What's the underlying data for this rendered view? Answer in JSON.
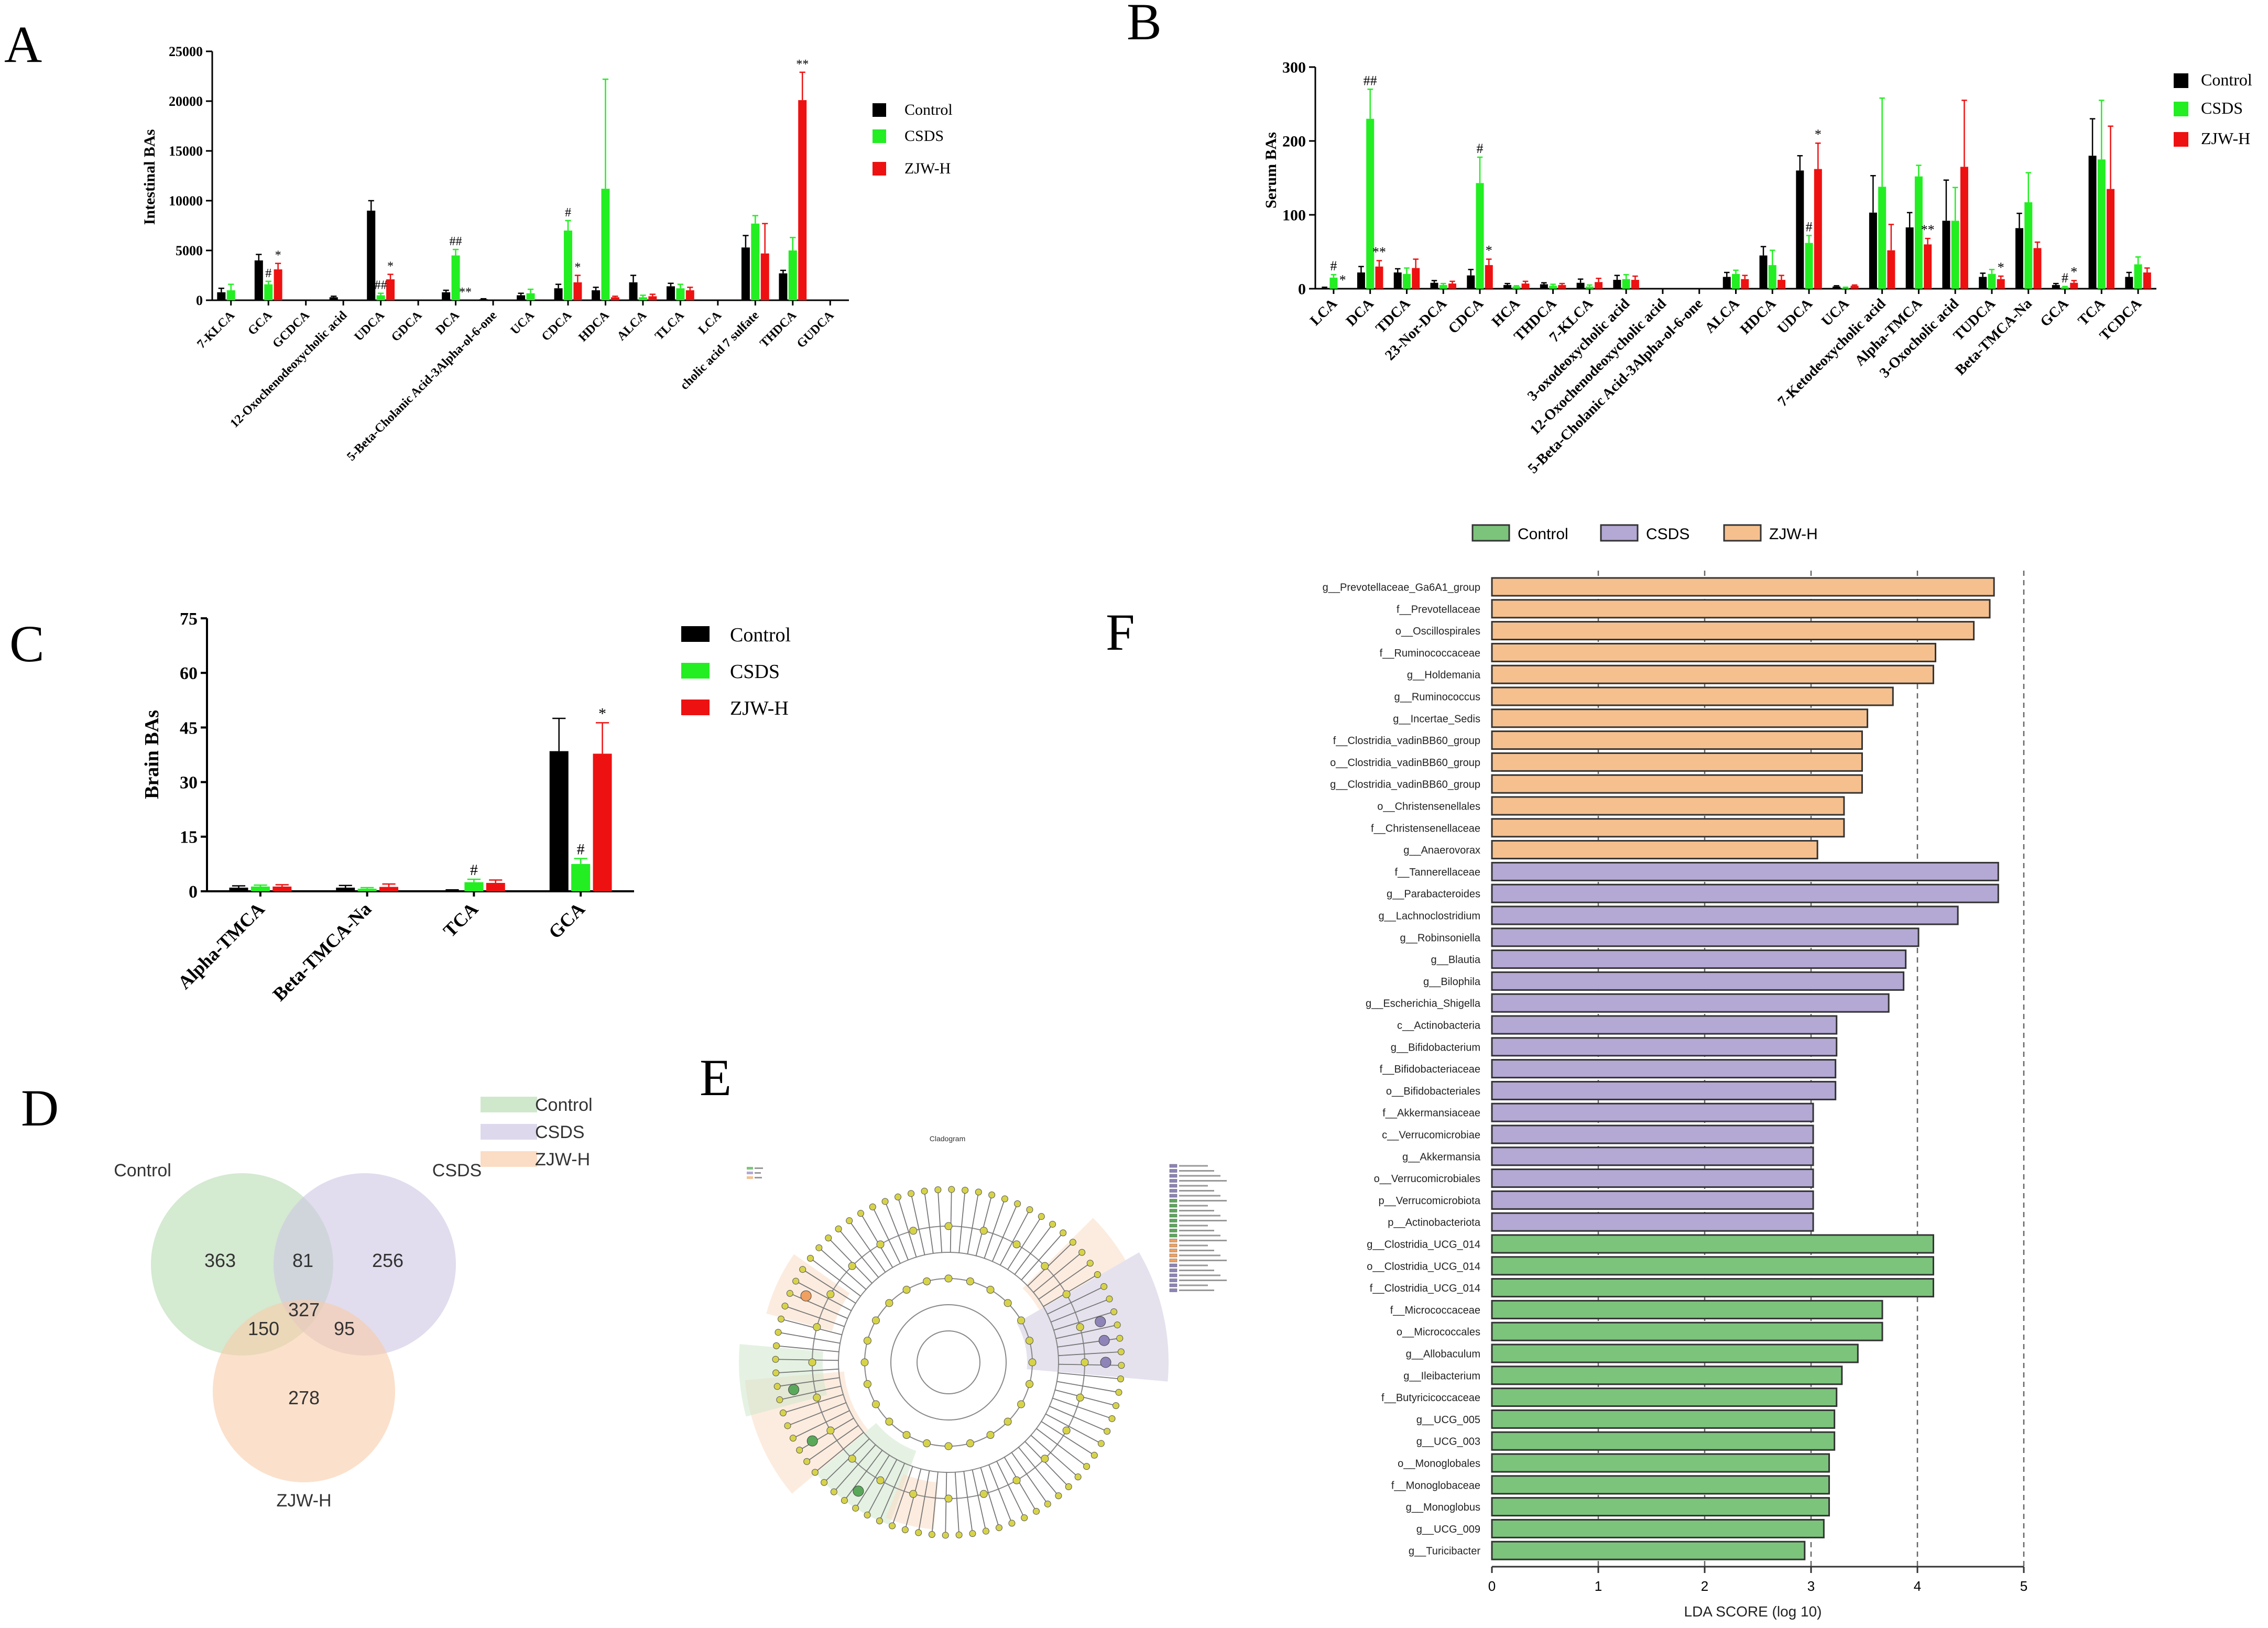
{
  "panels": [
    {
      "id": "A",
      "letter": "A",
      "ylabel": "Intestinal BAs",
      "ylim": [
        0,
        25000
      ],
      "yticks": [
        0,
        5000,
        10000,
        15000,
        20000,
        25000
      ],
      "legend": [
        "Control",
        "CSDS",
        "ZJW-H"
      ],
      "categories": [
        "7-KLCA",
        "GCA",
        "GCDCA",
        "12-Oxochenodeoxycholic acid",
        "UDCA",
        "GDCA",
        "DCA",
        "5-Beta-Cholanic Acid-3Alpha-ol-6-one",
        "UCA",
        "CDCA",
        "HDCA",
        "ALCA",
        "TLCA",
        "LCA",
        "cholic acid 7 sulfate",
        "THDCA",
        "GUDCA"
      ]
    },
    {
      "id": "B",
      "letter": "B",
      "ylabel": "Serum BAs",
      "ylim": [
        0,
        300
      ],
      "yticks": [
        0,
        100,
        200,
        300
      ],
      "legend": [
        "Control",
        "CSDS",
        "ZJW-H"
      ],
      "categories": [
        "LCA",
        "DCA",
        "TDCA",
        "23-Nor-DCA",
        "CDCA",
        "HCA",
        "THDCA",
        "7-KLCA",
        "3-oxodeoxycholic acid",
        "12-Oxochenodeoxycholic acid",
        "5-Beta-Cholanic Acid-3Alpha-ol-6-one",
        "ALCA",
        "HDCA",
        "UDCA",
        "UCA",
        "7-Ketodeoxycholic acid",
        "Alpha-TMCA",
        "3-Oxocholic acid",
        "TUDCA",
        "Beta-TMCA-Na",
        "GCA",
        "TCA",
        "TCDCA"
      ]
    },
    {
      "id": "C",
      "letter": "C",
      "ylabel": "Brain BAs",
      "ylim": [
        0,
        75
      ],
      "yticks": [
        0,
        15,
        30,
        45,
        60,
        75
      ],
      "legend": [
        "Control",
        "CSDS",
        "ZJW-H"
      ],
      "categories": [
        "Alpha-TMCA",
        "Beta-TMCA-Na",
        "TCA",
        "GCA"
      ]
    },
    {
      "id": "D",
      "letter": "D",
      "sets": [
        "Control",
        "CSDS",
        "ZJW-H"
      ],
      "legend": [
        "Control",
        "CSDS",
        "ZJW-H"
      ],
      "counts": {
        "control_only": "363",
        "control_csds": "81",
        "csds_only": "256",
        "all": "327",
        "control_zjw": "150",
        "csds_zjw": "95",
        "zjw_only": "278"
      }
    },
    {
      "id": "E",
      "letter": "E",
      "title": "Cladogram"
    },
    {
      "id": "F",
      "letter": "F",
      "xlabel": "LDA SCORE (log 10)",
      "xticks": [
        0,
        1,
        2,
        3,
        4,
        5
      ],
      "legend": [
        "Control",
        "CSDS",
        "ZJW-H"
      ]
    }
  ],
  "colors": {
    "control": "#000000",
    "csds": "#22ee22",
    "zjw": "#ee1111",
    "lda_control": "#7cc47c",
    "lda_csds": "#b4a8d4",
    "lda_zjw": "#f6c08e",
    "venn_control": "#cfe8cc",
    "venn_csds": "#ddd8ec",
    "venn_zjw": "#fbdcc4"
  },
  "chart_data": [
    {
      "panel": "A",
      "type": "bar",
      "ylabel": "Intestinal BAs",
      "ylim": [
        0,
        25000
      ],
      "categories": [
        "7-KLCA",
        "GCA",
        "GCDCA",
        "12-Oxochenodeoxycholic acid",
        "UDCA",
        "GDCA",
        "DCA",
        "5-Beta-Cholanic Acid-3Alpha-ol-6-one",
        "UCA",
        "CDCA",
        "HDCA",
        "ALCA",
        "TLCA",
        "LCA",
        "cholic acid 7 sulfate",
        "THDCA",
        "GUDCA"
      ],
      "series": [
        {
          "name": "Control",
          "values": [
            800,
            4000,
            0,
            300,
            9000,
            0,
            800,
            100,
            500,
            1200,
            1000,
            1800,
            1400,
            0,
            5300,
            2700,
            0
          ],
          "errors": [
            400,
            600,
            0,
            100,
            1000,
            0,
            200,
            50,
            200,
            400,
            300,
            700,
            300,
            0,
            1200,
            300,
            0
          ]
        },
        {
          "name": "CSDS",
          "values": [
            1000,
            1600,
            0,
            0,
            500,
            0,
            4500,
            0,
            700,
            7000,
            11200,
            300,
            1200,
            0,
            7700,
            5000,
            0
          ],
          "errors": [
            600,
            300,
            0,
            0,
            200,
            0,
            600,
            0,
            400,
            1000,
            11000,
            200,
            400,
            0,
            800,
            1300,
            0
          ]
        },
        {
          "name": "ZJW-H",
          "values": [
            0,
            3100,
            0,
            0,
            2100,
            0,
            0,
            0,
            0,
            1800,
            300,
            400,
            1000,
            0,
            4700,
            20100,
            0
          ],
          "errors": [
            0,
            600,
            0,
            0,
            500,
            0,
            0,
            0,
            0,
            700,
            100,
            200,
            300,
            0,
            3000,
            2800,
            0
          ]
        }
      ],
      "annotations": [
        {
          "category": "GCA",
          "series": "CSDS",
          "text": "#"
        },
        {
          "category": "GCA",
          "series": "ZJW-H",
          "text": "*"
        },
        {
          "category": "UDCA",
          "series": "CSDS",
          "text": "##"
        },
        {
          "category": "UDCA",
          "series": "ZJW-H",
          "text": "*"
        },
        {
          "category": "DCA",
          "series": "CSDS",
          "text": "##"
        },
        {
          "category": "DCA",
          "series": "ZJW-H",
          "text": "**"
        },
        {
          "category": "CDCA",
          "series": "CSDS",
          "text": "#"
        },
        {
          "category": "CDCA",
          "series": "ZJW-H",
          "text": "*"
        },
        {
          "category": "THDCA",
          "series": "ZJW-H",
          "text": "**"
        }
      ]
    },
    {
      "panel": "B",
      "type": "bar",
      "ylabel": "Serum BAs",
      "ylim": [
        0,
        300
      ],
      "categories": [
        "LCA",
        "DCA",
        "TDCA",
        "23-Nor-DCA",
        "CDCA",
        "HCA",
        "THDCA",
        "7-KLCA",
        "3-oxodeoxycholic acid",
        "12-Oxochenodeoxycholic acid",
        "5-Beta-Cholanic Acid-3Alpha-ol-6-one",
        "ALCA",
        "HDCA",
        "UDCA",
        "UCA",
        "7-Ketodeoxycholic acid",
        "Alpha-TMCA",
        "3-Oxocholic acid",
        "TUDCA",
        "Beta-TMCA-Na",
        "GCA",
        "TCA",
        "TCDCA"
      ],
      "series": [
        {
          "name": "Control",
          "values": [
            1,
            22,
            22,
            8,
            18,
            5,
            6,
            8,
            12,
            0,
            0,
            16,
            45,
            160,
            3,
            103,
            83,
            92,
            16,
            82,
            5,
            180,
            16
          ],
          "errors": [
            1,
            8,
            5,
            3,
            8,
            2,
            2,
            5,
            6,
            0,
            0,
            6,
            12,
            20,
            1,
            50,
            20,
            55,
            5,
            20,
            2,
            50,
            6
          ]
        },
        {
          "name": "CSDS",
          "values": [
            15,
            230,
            20,
            5,
            143,
            3,
            4,
            3,
            13,
            0,
            0,
            20,
            32,
            62,
            1,
            138,
            152,
            92,
            20,
            117,
            2,
            175,
            33
          ],
          "errors": [
            4,
            40,
            8,
            2,
            35,
            1,
            2,
            2,
            6,
            0,
            0,
            5,
            20,
            10,
            1,
            120,
            15,
            45,
            6,
            40,
            1,
            80,
            10
          ]
        },
        {
          "name": "ZJW-H",
          "values": [
            0,
            30,
            28,
            7,
            32,
            7,
            5,
            9,
            12,
            0,
            0,
            13,
            12,
            162,
            4,
            52,
            60,
            165,
            13,
            55,
            8,
            135,
            22
          ],
          "errors": [
            0,
            8,
            12,
            3,
            8,
            3,
            2,
            5,
            5,
            0,
            0,
            5,
            6,
            35,
            1,
            35,
            8,
            90,
            4,
            8,
            3,
            85,
            6
          ]
        }
      ],
      "annotations": [
        {
          "category": "LCA",
          "series": "CSDS",
          "text": "#"
        },
        {
          "category": "LCA",
          "series": "ZJW-H",
          "text": "*"
        },
        {
          "category": "DCA",
          "series": "CSDS",
          "text": "##"
        },
        {
          "category": "DCA",
          "series": "ZJW-H",
          "text": "**"
        },
        {
          "category": "CDCA",
          "series": "CSDS",
          "text": "#"
        },
        {
          "category": "CDCA",
          "series": "ZJW-H",
          "text": "*"
        },
        {
          "category": "UDCA",
          "series": "CSDS",
          "text": "#"
        },
        {
          "category": "UDCA",
          "series": "ZJW-H",
          "text": "*"
        },
        {
          "category": "Alpha-TMCA",
          "series": "ZJW-H",
          "text": "**"
        },
        {
          "category": "TUDCA",
          "series": "ZJW-H",
          "text": "*"
        },
        {
          "category": "GCA",
          "series": "CSDS",
          "text": "#"
        },
        {
          "category": "GCA",
          "series": "ZJW-H",
          "text": "*"
        }
      ]
    },
    {
      "panel": "C",
      "type": "bar",
      "ylabel": "Brain BAs",
      "ylim": [
        0,
        75
      ],
      "categories": [
        "Alpha-TMCA",
        "Beta-TMCA-Na",
        "TCA",
        "GCA"
      ],
      "series": [
        {
          "name": "Control",
          "values": [
            1.0,
            1.0,
            0.2,
            38.5
          ],
          "errors": [
            0.5,
            0.6,
            0.2,
            9.0
          ]
        },
        {
          "name": "CSDS",
          "values": [
            1.3,
            0.7,
            2.5,
            7.5
          ],
          "errors": [
            0.4,
            0.3,
            0.8,
            1.5
          ]
        },
        {
          "name": "ZJW-H",
          "values": [
            1.3,
            1.2,
            2.3,
            37.8
          ],
          "errors": [
            0.5,
            0.8,
            0.8,
            8.5
          ]
        }
      ],
      "annotations": [
        {
          "category": "TCA",
          "series": "CSDS",
          "text": "#"
        },
        {
          "category": "GCA",
          "series": "CSDS",
          "text": "#"
        },
        {
          "category": "GCA",
          "series": "ZJW-H",
          "text": "*"
        }
      ]
    },
    {
      "panel": "F",
      "type": "bar",
      "orientation": "horizontal",
      "xlabel": "LDA SCORE (log 10)",
      "xlim": [
        0,
        5
      ],
      "categories": [
        "g__Prevotellaceae_Ga6A1_group",
        "f__Prevotellaceae",
        "o__Oscillospirales",
        "f__Ruminococcaceae",
        "g__Holdemania",
        "g__Ruminococcus",
        "g__Incertae_Sedis",
        "f__Clostridia_vadinBB60_group",
        "o__Clostridia_vadinBB60_group",
        "g__Clostridia_vadinBB60_group",
        "o__Christensenellales",
        "f__Christensenellaceae",
        "g__Anaerovorax",
        "f__Tannerellaceae",
        "g__Parabacteroides",
        "g__Lachnoclostridium",
        "g__Robinsoniella",
        "g__Blautia",
        "g__Bilophila",
        "g__Escherichia_Shigella",
        "c__Actinobacteria",
        "g__Bifidobacterium",
        "f__Bifidobacteriaceae",
        "o__Bifidobacteriales",
        "f__Akkermansiaceae",
        "c__Verrucomicrobiae",
        "g__Akkermansia",
        "o__Verrucomicrobiales",
        "p__Verrucomicrobiota",
        "p__Actinobacteriota",
        "g__Clostridia_UCG_014",
        "o__Clostridia_UCG_014",
        "f__Clostridia_UCG_014",
        "f__Micrococcaceae",
        "o__Micrococcales",
        "g__Allobaculum",
        "g__Ileibacterium",
        "f__Butyricicoccaceae",
        "g__UCG_005",
        "g__UCG_003",
        "o__Monoglobales",
        "f__Monoglobaceae",
        "g__Monoglobus",
        "g__UCG_009",
        "g__Turicibacter"
      ],
      "values": [
        4.72,
        4.68,
        4.53,
        4.17,
        4.15,
        3.77,
        3.53,
        3.48,
        3.48,
        3.48,
        3.31,
        3.31,
        3.06,
        4.76,
        4.76,
        4.38,
        4.01,
        3.89,
        3.87,
        3.73,
        3.24,
        3.24,
        3.23,
        3.23,
        3.02,
        3.02,
        3.02,
        3.02,
        3.02,
        3.02,
        4.15,
        4.15,
        4.15,
        3.67,
        3.67,
        3.44,
        3.29,
        3.24,
        3.22,
        3.22,
        3.17,
        3.17,
        3.17,
        3.12,
        2.94
      ],
      "groups": [
        "ZJW-H",
        "ZJW-H",
        "ZJW-H",
        "ZJW-H",
        "ZJW-H",
        "ZJW-H",
        "ZJW-H",
        "ZJW-H",
        "ZJW-H",
        "ZJW-H",
        "ZJW-H",
        "ZJW-H",
        "ZJW-H",
        "CSDS",
        "CSDS",
        "CSDS",
        "CSDS",
        "CSDS",
        "CSDS",
        "CSDS",
        "CSDS",
        "CSDS",
        "CSDS",
        "CSDS",
        "CSDS",
        "CSDS",
        "CSDS",
        "CSDS",
        "CSDS",
        "CSDS",
        "Control",
        "Control",
        "Control",
        "Control",
        "Control",
        "Control",
        "Control",
        "Control",
        "Control",
        "Control",
        "Control",
        "Control",
        "Control",
        "Control",
        "Control"
      ]
    }
  ]
}
